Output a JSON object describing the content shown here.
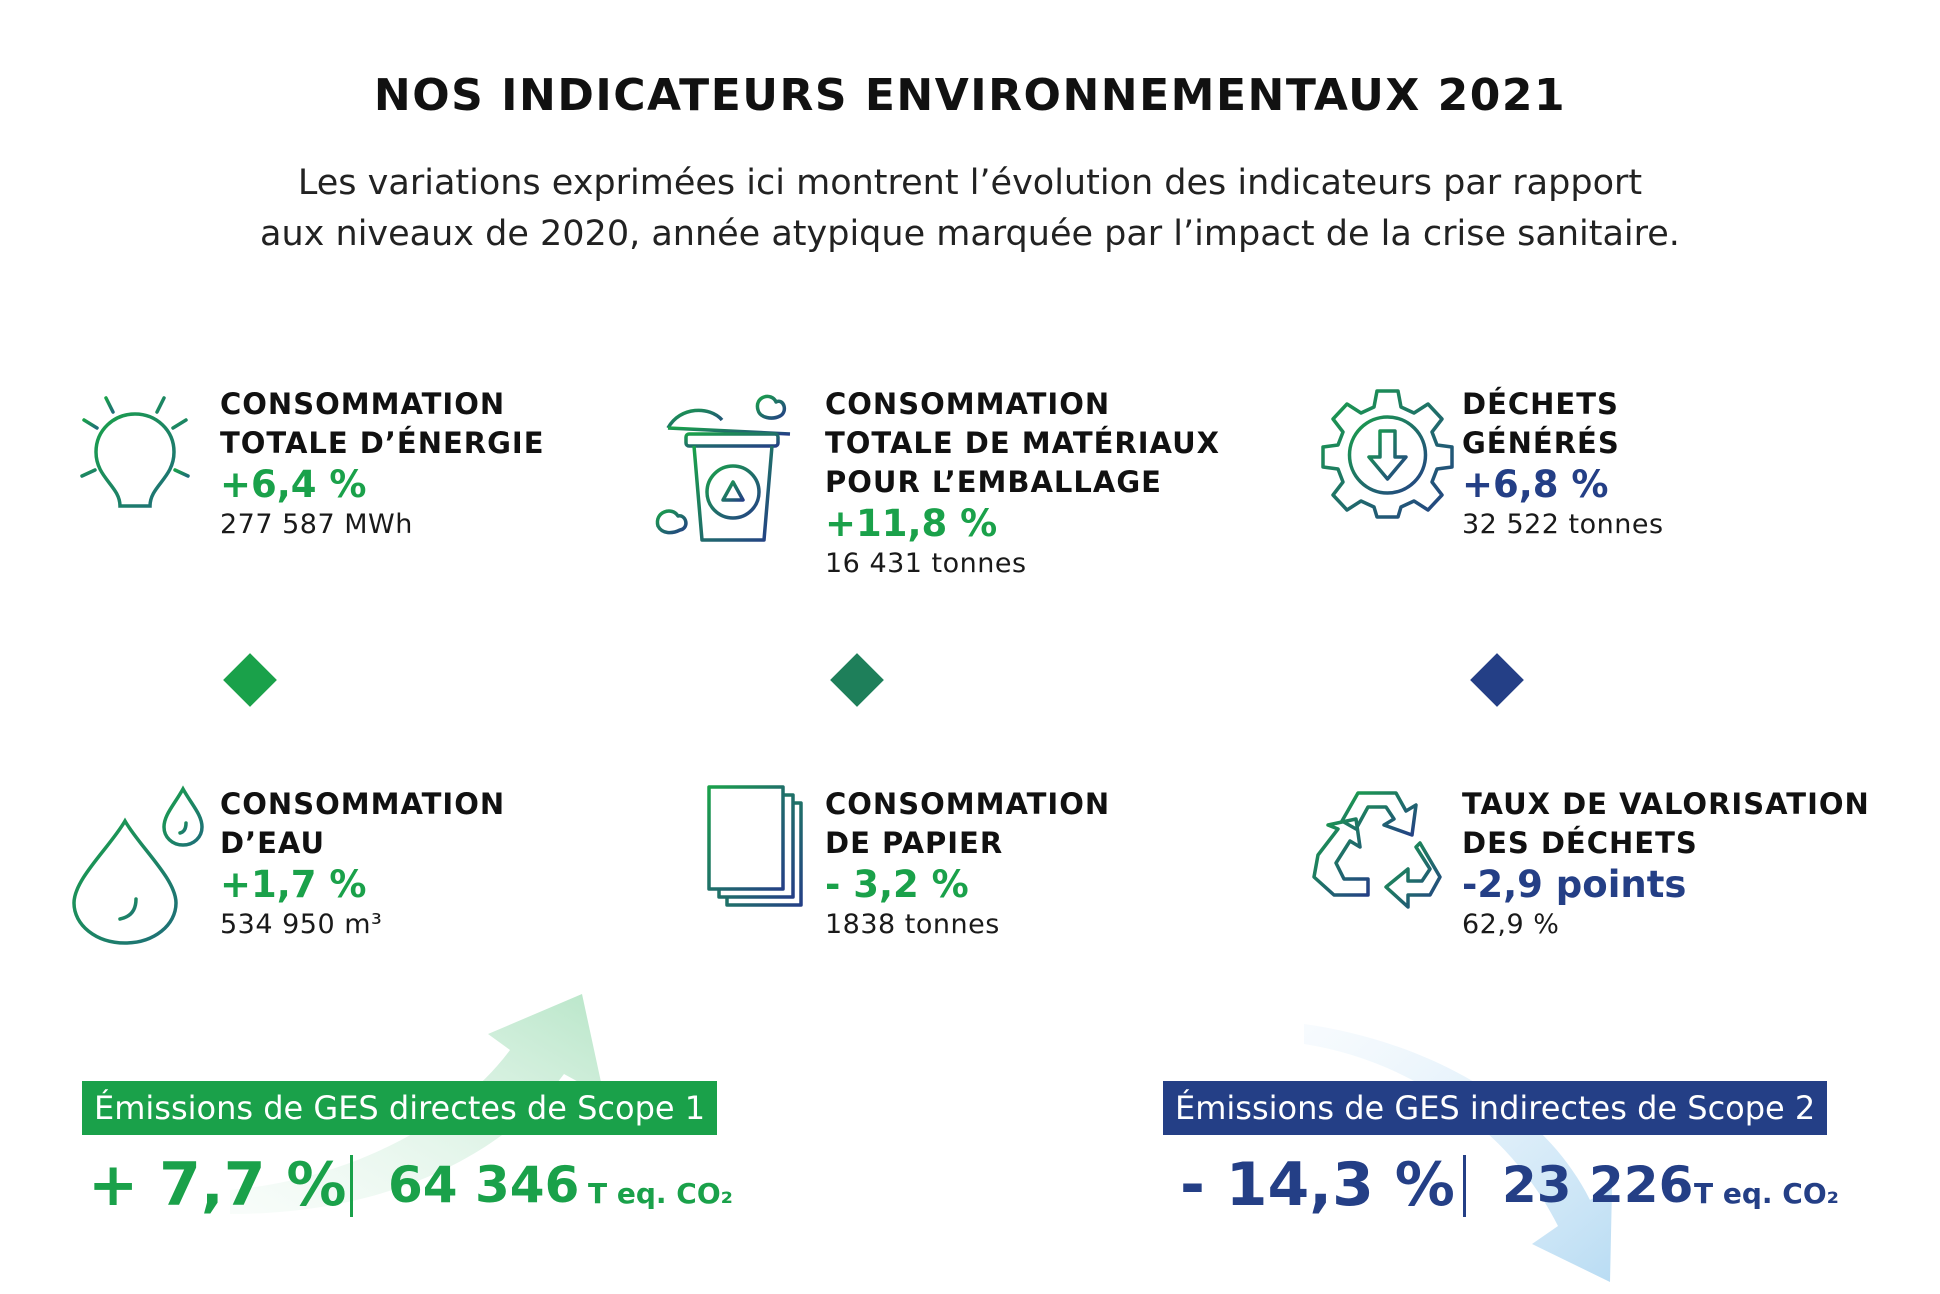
{
  "header": {
    "title": "NOS INDICATEURS ENVIRONNEMENTAUX 2021",
    "subtitle_line1": "Les variations exprimées ici montrent l’évolution des indicateurs par rapport",
    "subtitle_line2": "aux niveaux de 2020, année atypique marquée par l’impact de la crise sanitaire."
  },
  "colors": {
    "green": "#1aa14a",
    "teal": "#1e7f5a",
    "blue": "#243f86",
    "arrow_green": "#cdeedd",
    "arrow_blue": "#cfe6f5"
  },
  "indicators": [
    {
      "icon": "lightbulb-icon",
      "label_line1": "CONSOMMATION",
      "label_line2": "TOTALE D’ÉNERGIE",
      "label_line3": "",
      "change": "+6,4 %",
      "value": "277 587 MWh"
    },
    {
      "icon": "recycling-bin-icon",
      "label_line1": "CONSOMMATION",
      "label_line2": "TOTALE DE MATÉRIAUX",
      "label_line3": "POUR L’EMBALLAGE",
      "change": "+11,8 %",
      "value": "16 431 tonnes"
    },
    {
      "icon": "gear-arrow-icon",
      "label_line1": "DÉCHETS",
      "label_line2": "GÉNÉRÉS",
      "label_line3": "",
      "change": "+6,8 %",
      "value": "32 522 tonnes"
    },
    {
      "icon": "water-drop-icon",
      "label_line1": "CONSOMMATION",
      "label_line2": "D’EAU",
      "label_line3": "",
      "change": "+1,7 %",
      "value": "534 950 m³"
    },
    {
      "icon": "paper-stack-icon",
      "label_line1": "CONSOMMATION",
      "label_line2": "DE PAPIER",
      "label_line3": "",
      "change": "- 3,2 %",
      "value": "1838 tonnes"
    },
    {
      "icon": "recycle-icon",
      "label_line1": "TAUX DE VALORISATION",
      "label_line2": "DES DÉCHETS",
      "label_line3": "",
      "change": "-2,9 points",
      "value": "62,9 %"
    }
  ],
  "scope1": {
    "label": "Émissions de GES directes de Scope 1",
    "change": "+ 7,7 %",
    "value": "64 346",
    "unit": "T eq. CO₂"
  },
  "scope2": {
    "label": "Émissions de GES indirectes de Scope 2",
    "change": "- 14,3 %",
    "value": "23 226",
    "unit": "T eq. CO₂"
  }
}
